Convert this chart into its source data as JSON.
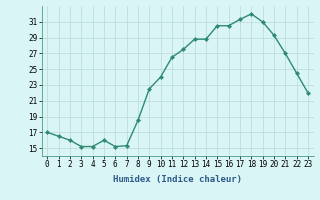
{
  "x": [
    0,
    1,
    2,
    3,
    4,
    5,
    6,
    7,
    8,
    9,
    10,
    11,
    12,
    13,
    14,
    15,
    16,
    17,
    18,
    19,
    20,
    21,
    22,
    23
  ],
  "y": [
    17.0,
    16.5,
    16.0,
    15.2,
    15.2,
    16.0,
    15.2,
    15.3,
    18.5,
    22.5,
    24.0,
    26.5,
    27.5,
    28.8,
    28.8,
    30.5,
    30.5,
    31.3,
    32.0,
    31.0,
    29.3,
    27.0,
    24.5,
    22.0
  ],
  "line_color": "#2e8b72",
  "marker": "D",
  "marker_size": 2.0,
  "bg_color": "#d9f5f5",
  "grid_color": "#b8d8d8",
  "xlabel": "Humidex (Indice chaleur)",
  "xlim": [
    -0.5,
    23.5
  ],
  "ylim": [
    14,
    33
  ],
  "yticks": [
    15,
    17,
    19,
    21,
    23,
    25,
    27,
    29,
    31
  ],
  "xtick_labels": [
    "0",
    "1",
    "2",
    "3",
    "4",
    "5",
    "6",
    "7",
    "8",
    "9",
    "10",
    "11",
    "12",
    "13",
    "14",
    "15",
    "16",
    "17",
    "18",
    "19",
    "20",
    "21",
    "22",
    "23"
  ],
  "xlabel_fontsize": 6.5,
  "tick_fontsize": 5.5,
  "line_width": 1.0
}
